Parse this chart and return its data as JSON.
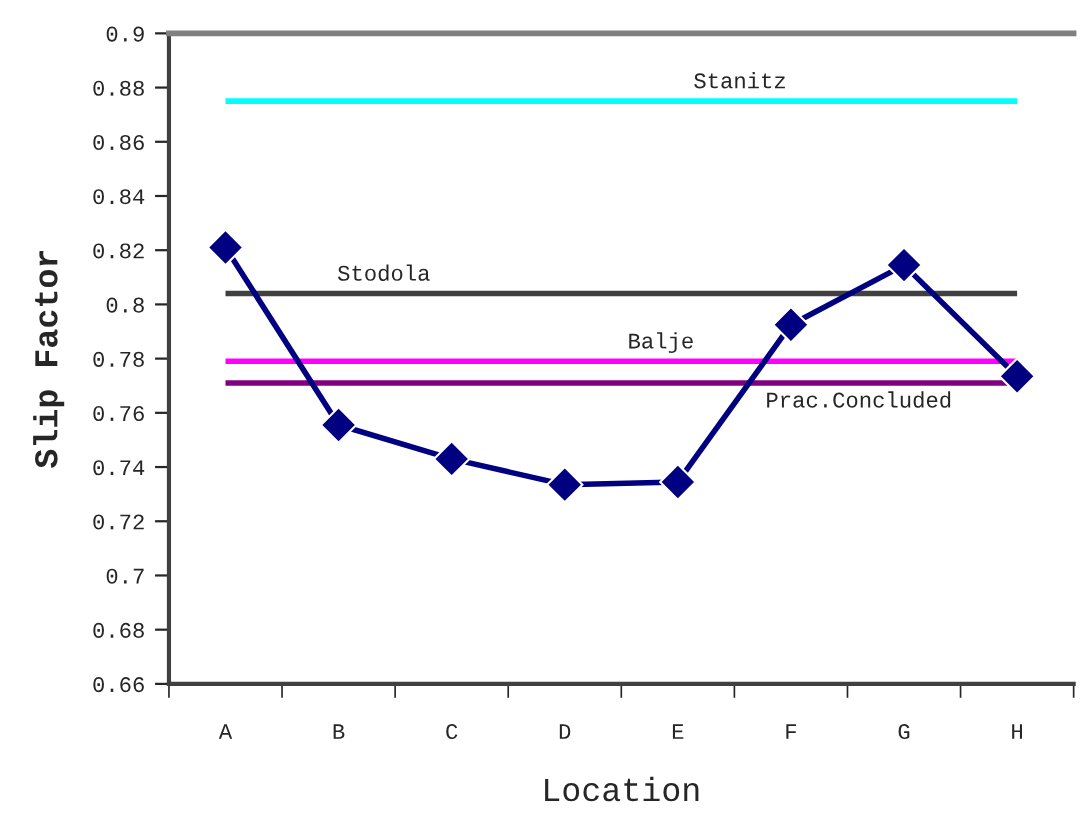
{
  "chart_data": {
    "type": "line",
    "xlabel": "Location",
    "ylabel": "Slip Factor",
    "categories": [
      "A",
      "B",
      "C",
      "D",
      "E",
      "F",
      "G",
      "H"
    ],
    "series": [
      {
        "color": "#000080",
        "values": [
          0.821,
          0.7555,
          0.743,
          0.7335,
          0.7345,
          0.7925,
          0.8145,
          0.7735
        ]
      }
    ],
    "marker": "diamond",
    "grid": false,
    "ylim": [
      0.66,
      0.9
    ],
    "yticks": [
      0.66,
      0.68,
      0.7,
      0.72,
      0.74,
      0.76,
      0.78,
      0.8,
      0.82,
      0.84,
      0.86,
      0.88,
      0.9
    ],
    "ref_lines": [
      {
        "axis": "y",
        "value": 0.875,
        "label": "Stanitz",
        "color": "#00ffff"
      },
      {
        "axis": "y",
        "value": 0.804,
        "label": "Stodola",
        "color": "#404040"
      },
      {
        "axis": "y",
        "value": 0.779,
        "label": "Balje",
        "color": "#ff00ff"
      },
      {
        "axis": "y",
        "value": 0.771,
        "label": "Prac.Concluded",
        "color": "#800080"
      }
    ]
  }
}
